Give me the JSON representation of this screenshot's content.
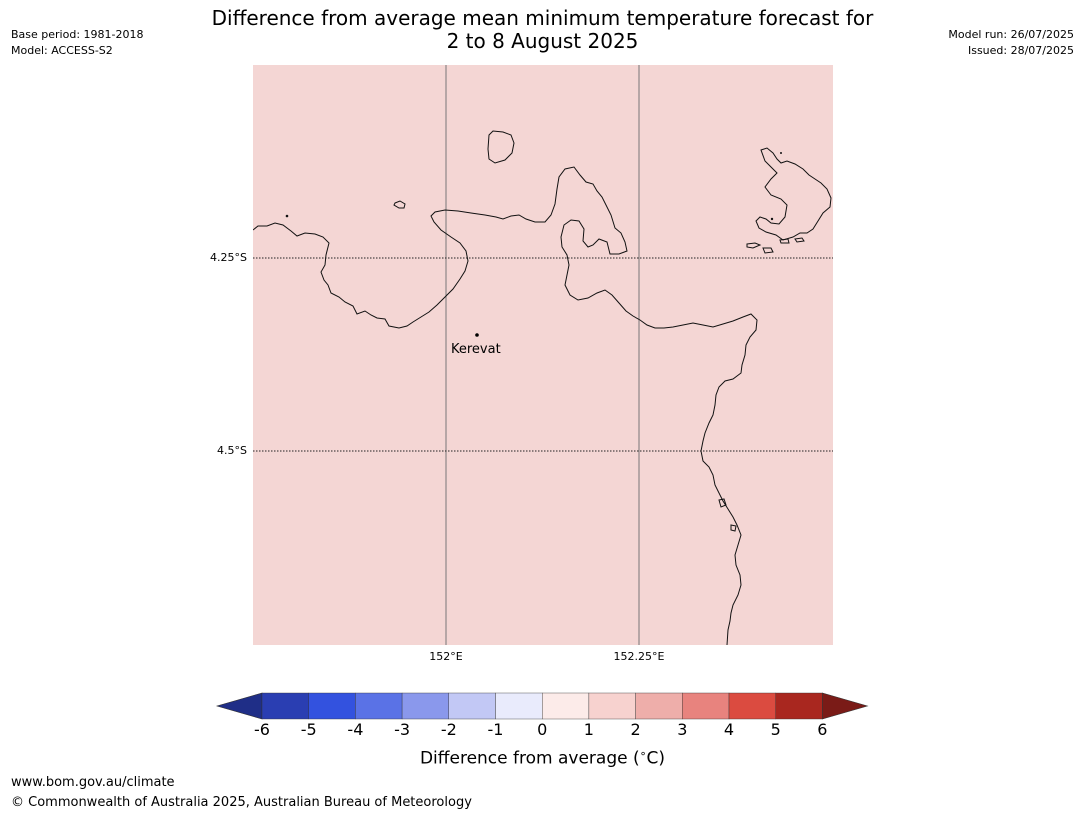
{
  "header": {
    "base_period": "Base period: 1981-2018",
    "model": "Model: ACCESS-S2",
    "title_line1": "Difference from average mean minimum temperature forecast for",
    "title_line2": "2 to 8 August 2025",
    "model_run": "Model run: 26/07/2025",
    "issued": "Issued: 28/07/2025"
  },
  "map": {
    "fill_color": "#f4d6d4",
    "lat_labels": [
      "4.25°S",
      "4.5°S"
    ],
    "lon_labels": [
      "152°E",
      "152.25°E"
    ],
    "place": "Kerevat"
  },
  "colorbar": {
    "ticks": [
      "-6",
      "-5",
      "-4",
      "-3",
      "-2",
      "-1",
      "0",
      "1",
      "2",
      "3",
      "4",
      "5",
      "6"
    ],
    "colors": [
      "#1f2e87",
      "#2a3eb2",
      "#3352df",
      "#5a72e6",
      "#8a98ec",
      "#c2c8f5",
      "#e9ebfc",
      "#fcebe9",
      "#f7d2cf",
      "#eeaeaa",
      "#e8837e",
      "#db4b40",
      "#a9271f",
      "#7a1b17"
    ],
    "label": "Difference from average (",
    "label_degree": "∘",
    "label_unit": "C)"
  },
  "footer": {
    "url": "www.bom.gov.au/climate",
    "copyright": "© Commonwealth of Australia 2025, Australian Bureau of Meteorology"
  }
}
